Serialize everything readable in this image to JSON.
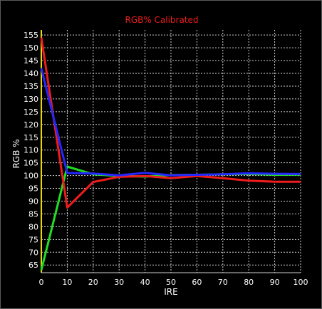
{
  "chart_data": {
    "type": "line",
    "title": "RGB% Calibrated",
    "xlabel": "IRE",
    "ylabel": "RGB %",
    "xlim": [
      0,
      100
    ],
    "ylim": [
      62,
      157
    ],
    "xticks": [
      0,
      10,
      20,
      30,
      40,
      50,
      60,
      70,
      80,
      90,
      100
    ],
    "yticks": [
      65,
      70,
      75,
      80,
      85,
      90,
      95,
      100,
      105,
      110,
      115,
      120,
      125,
      130,
      135,
      140,
      145,
      150,
      155
    ],
    "grid": true,
    "series": [
      {
        "color": "#22dd22",
        "x": [
          0,
          10,
          20,
          30,
          40,
          50,
          60,
          70,
          80,
          90,
          100
        ],
        "y": [
          63,
          103.5,
          100.5,
          99.8,
          99.6,
          100.2,
          100.3,
          100.5,
          100.6,
          100.3,
          100.4
        ]
      },
      {
        "color": "#ee1c1c",
        "x": [
          0,
          10,
          20,
          30,
          40,
          50,
          60,
          70,
          80,
          90,
          100
        ],
        "y": [
          154,
          87.5,
          97.5,
          99.5,
          99.8,
          99.0,
          99.8,
          99.0,
          98.0,
          97.6,
          97.6
        ]
      },
      {
        "color": "#2626ff",
        "x": [
          0,
          10,
          20,
          30,
          40,
          50,
          60,
          70,
          80,
          90,
          100
        ],
        "y": [
          142,
          101,
          100.8,
          100.1,
          101.1,
          100.1,
          100.3,
          100.5,
          100.9,
          100.7,
          100.6
        ]
      }
    ]
  },
  "colors": {
    "title": "#ee1c1c",
    "background": "#000000",
    "grid": "#cfcfcf",
    "y_axis_line": "#e8d800",
    "x_axis_line": "#cfcfcf",
    "text": "#ffffff"
  }
}
